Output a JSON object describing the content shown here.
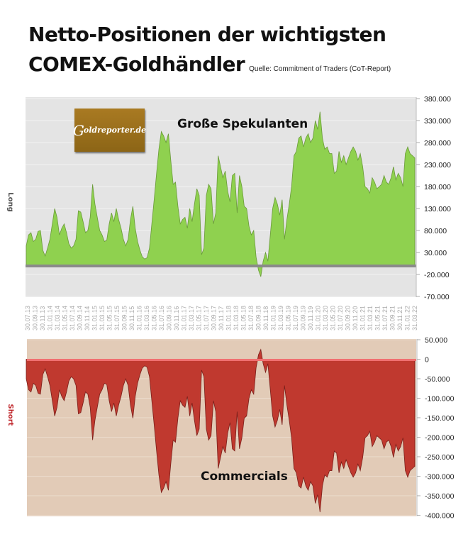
{
  "header": {
    "title_line1": "Netto-Positionen der wichtigsten",
    "title_line2": "COMEX-Goldhändler",
    "source": "Quelle: Commitment of Traders (CoT-Report)"
  },
  "logo": {
    "text_initial": "G",
    "text_rest": "oldreporter.de"
  },
  "colors": {
    "upper_bg": "#e4e4e4",
    "lower_bg": "#e2cbb7",
    "long_fill": "#8fd14f",
    "short_fill": "#c0392f",
    "grid": "#f2f2f2",
    "axis": "#bbbbbb"
  },
  "chart_data": [
    {
      "type": "area",
      "title": "Große Spekulanten",
      "ylabel": "Long",
      "ylim": [
        -70000,
        380000
      ],
      "yticks": [
        "380.000",
        "330.000",
        "280.000",
        "230.000",
        "180.000",
        "130.000",
        "80.000",
        "30.000",
        "-20.000",
        "-70.000"
      ],
      "grid": true,
      "x": [
        "30.07.13",
        "30.09.13",
        "30.11.13",
        "31.01.14",
        "31.03.14",
        "31.05.14",
        "31.07.14",
        "30.09.14",
        "30.11.14",
        "31.01.15",
        "31.03.15",
        "31.05.15",
        "31.07.15",
        "30.09.15",
        "30.11.15",
        "31.01.16",
        "31.03.16",
        "31.05.16",
        "31.07.16",
        "30.09.16",
        "30.11.16",
        "31.01.17",
        "31.03.17",
        "31.05.17",
        "31.07.17",
        "30.09.17",
        "30.11.17",
        "31.01.18",
        "31.03.18",
        "31.05.18",
        "31.07.18",
        "30.09.18",
        "30.11.18",
        "31.01.19",
        "31.03.19",
        "31.05.19",
        "31.07.19",
        "30.09.19",
        "30.11.19",
        "31.01.20",
        "31.03.20",
        "31.05.20",
        "31.07.20",
        "30.09.20",
        "30.11.20",
        "31.01.21",
        "31.03.21",
        "31.05.21",
        "31.07.21",
        "30.09.21",
        "30.11.21",
        "31.01.22",
        "31.03.22"
      ],
      "values": [
        50000,
        75000,
        55000,
        85000,
        25000,
        60000,
        125000,
        70000,
        45000,
        130000,
        115000,
        60000,
        95000,
        85000,
        185000,
        60000,
        120000,
        50000,
        65000,
        15000,
        130000,
        190000,
        280000,
        300000,
        290000,
        150000,
        95000,
        170000,
        70000,
        145000,
        150000,
        45000,
        240000,
        140000,
        145000,
        105000,
        245000,
        170000,
        20000,
        -5000,
        -25000,
        25000,
        115000,
        130000,
        40000,
        120000,
        260000,
        280000,
        250000,
        290000,
        320000,
        265000,
        240000
      ]
    },
    {
      "type": "area",
      "title": "Commercials",
      "ylabel": "Short",
      "ylim": [
        -400000,
        50000
      ],
      "yticks": [
        "50.000",
        "0",
        "-50.000",
        "-100.000",
        "-150.000",
        "-200.000",
        "-250.000",
        "-300.000",
        "-350.000",
        "-400.000"
      ],
      "grid": true,
      "x_ref": "same as chart 1",
      "values": [
        -50000,
        -80000,
        -70000,
        -90000,
        -30000,
        -80000,
        -145000,
        -90000,
        -65000,
        -160000,
        -140000,
        -80000,
        -120000,
        -100000,
        -205000,
        -70000,
        -155000,
        -60000,
        -80000,
        -10000,
        -160000,
        -215000,
        -290000,
        -330000,
        -310000,
        -180000,
        -120000,
        -210000,
        -100000,
        -165000,
        -180000,
        -60000,
        -255000,
        -170000,
        -175000,
        -130000,
        -280000,
        -190000,
        -30000,
        0,
        20000,
        -10000,
        -120000,
        -140000,
        -55000,
        -150000,
        -305000,
        -330000,
        -300000,
        -350000,
        -385000,
        -300000,
        -290000
      ]
    }
  ],
  "upper_series_dense": [
    45,
    70,
    75,
    55,
    60,
    78,
    80,
    35,
    22,
    40,
    60,
    95,
    130,
    110,
    70,
    85,
    95,
    75,
    50,
    40,
    45,
    60,
    125,
    122,
    100,
    75,
    80,
    110,
    185,
    140,
    110,
    80,
    70,
    55,
    58,
    95,
    120,
    100,
    130,
    105,
    85,
    60,
    45,
    60,
    105,
    135,
    85,
    55,
    35,
    20,
    15,
    18,
    40,
    95,
    150,
    210,
    265,
    305,
    295,
    280,
    300,
    240,
    185,
    190,
    135,
    95,
    105,
    110,
    85,
    130,
    100,
    140,
    175,
    160,
    25,
    40,
    160,
    185,
    175,
    95,
    120,
    250,
    225,
    200,
    215,
    170,
    145,
    205,
    210,
    120,
    205,
    180,
    135,
    130,
    90,
    70,
    80,
    20,
    -10,
    -25,
    10,
    30,
    10,
    70,
    130,
    155,
    140,
    115,
    150,
    60,
    105,
    140,
    180,
    250,
    260,
    290,
    295,
    270,
    290,
    300,
    280,
    290,
    330,
    310,
    350,
    290,
    265,
    270,
    255,
    255,
    210,
    215,
    260,
    235,
    250,
    230,
    245,
    260,
    270,
    260,
    240,
    255,
    225,
    180,
    175,
    165,
    200,
    190,
    175,
    180,
    185,
    205,
    190,
    185,
    200,
    225,
    195,
    210,
    200,
    180,
    255,
    270,
    255,
    250,
    245
  ]
}
